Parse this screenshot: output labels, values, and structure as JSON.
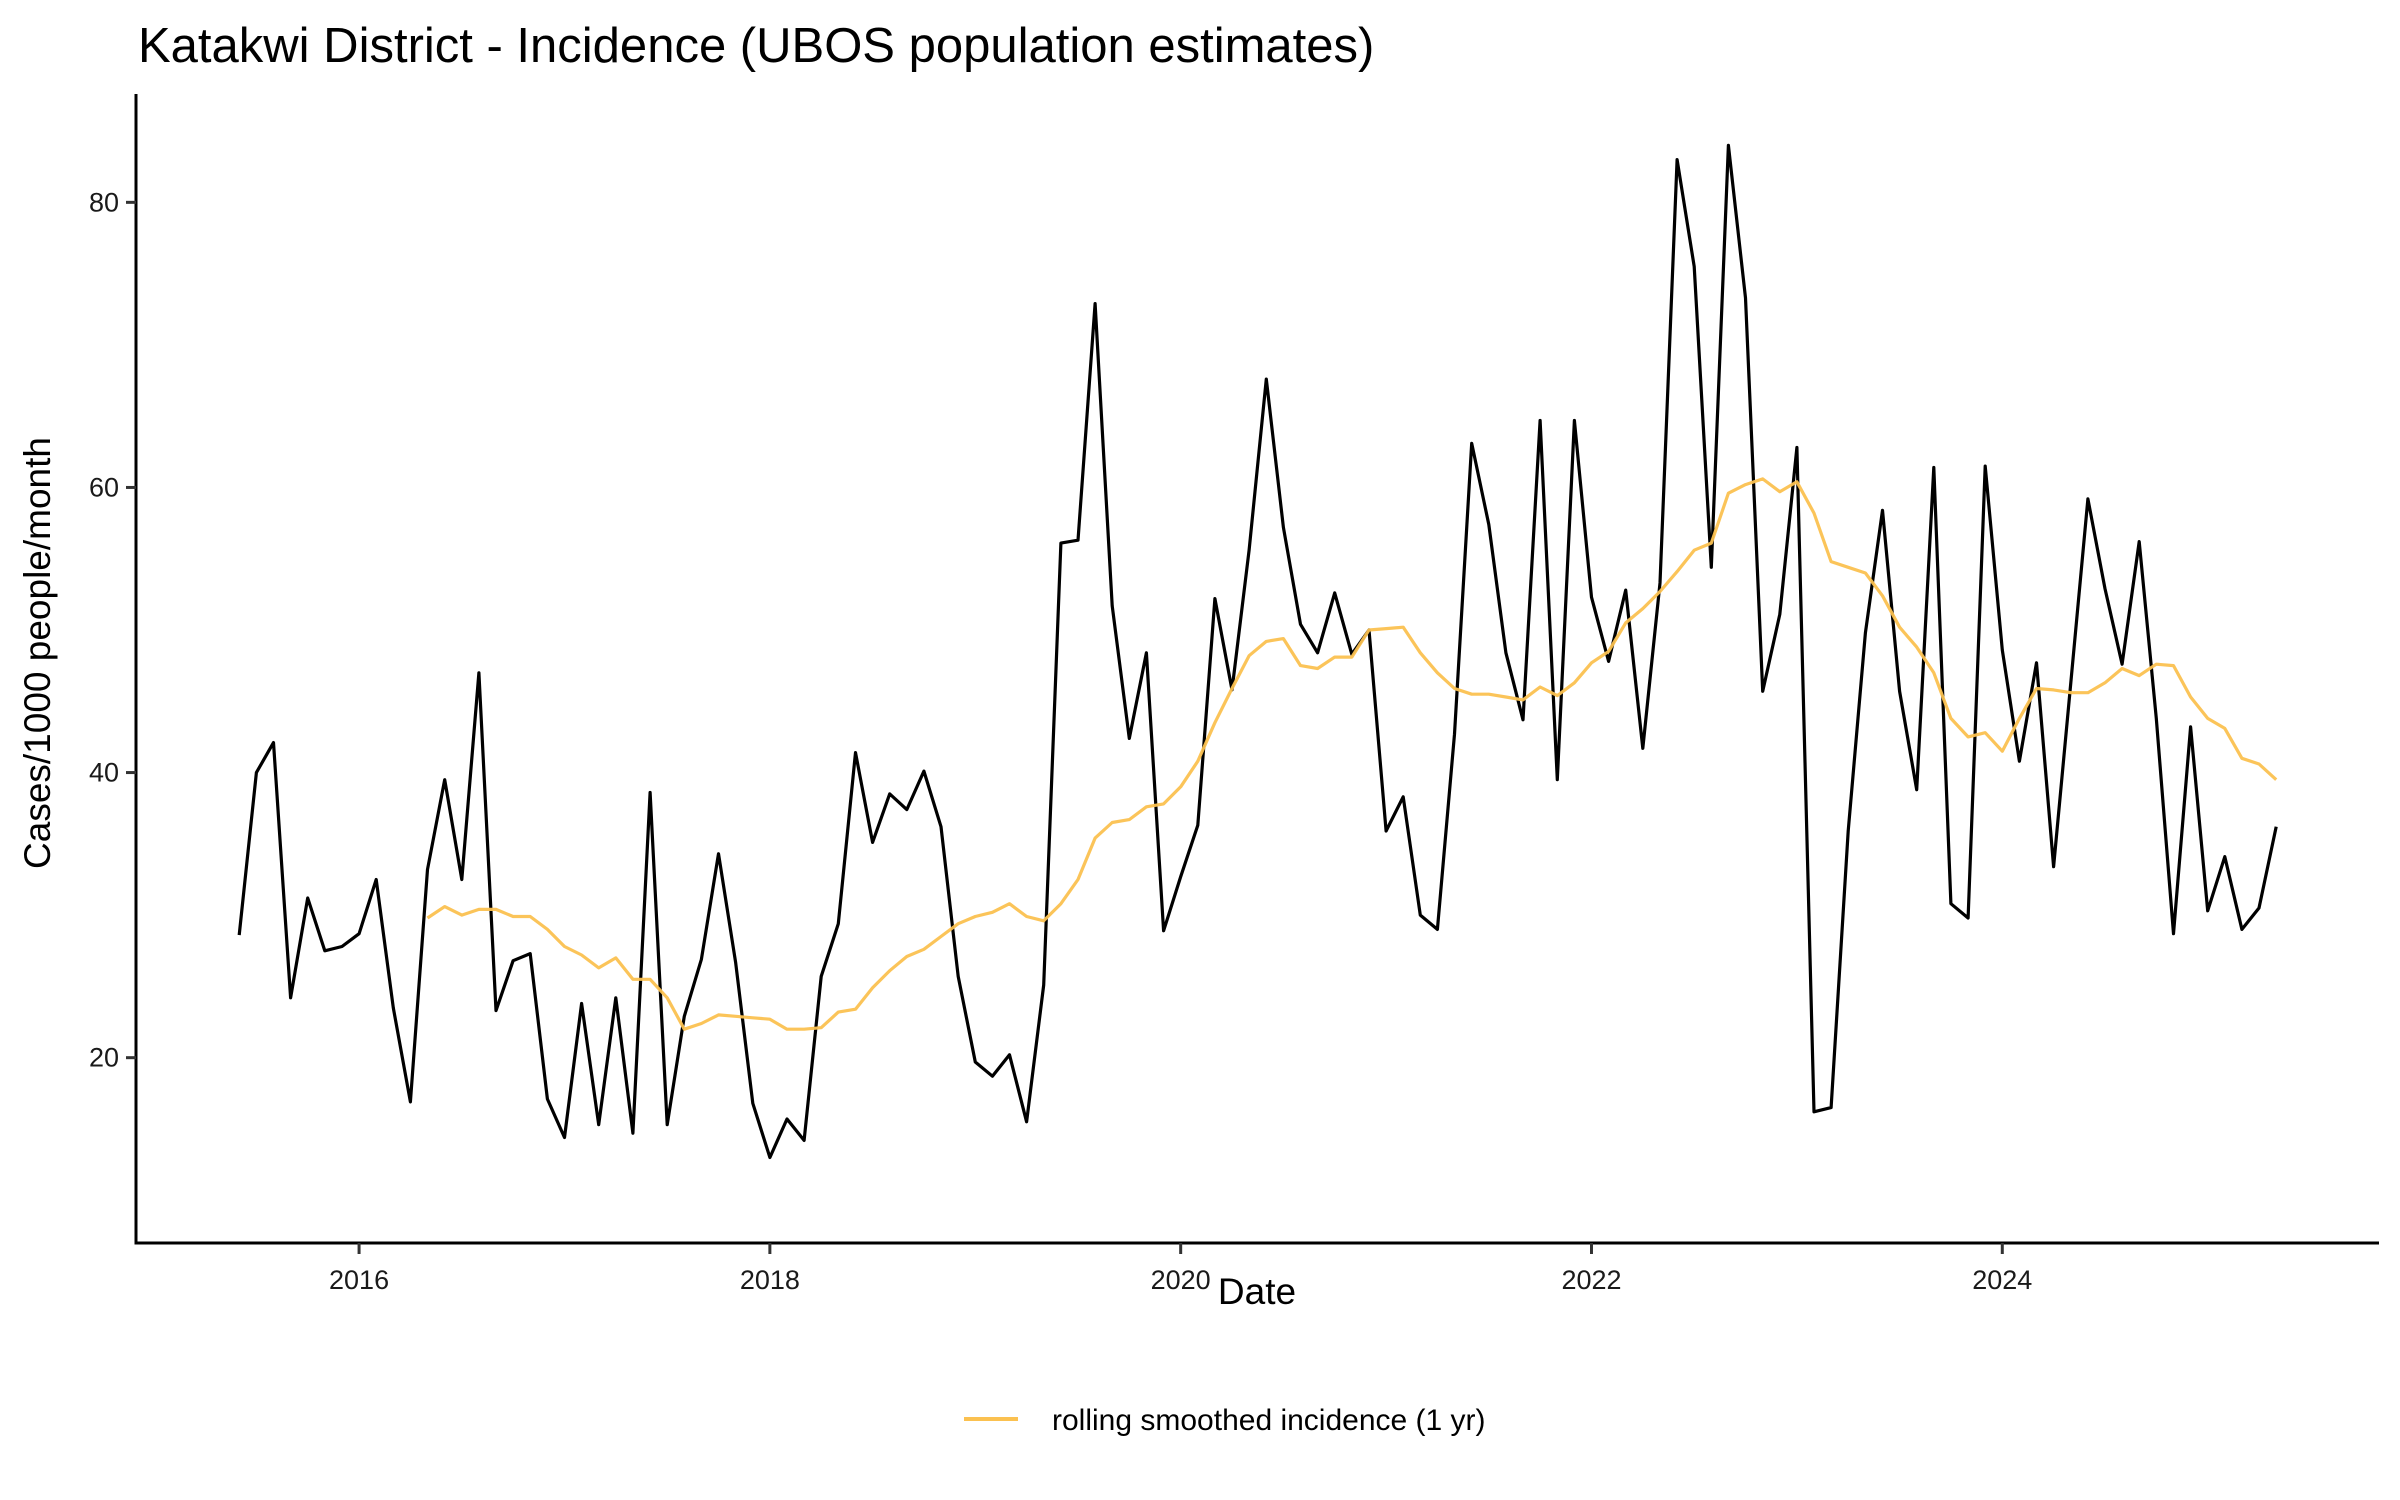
{
  "chart_data": {
    "type": "line",
    "title": "Katakwi District - Incidence (UBOS population estimates)",
    "xlabel": "Date",
    "ylabel": "Cases/1000 people/month",
    "xlim": [
      2014.914,
      2025.834
    ],
    "ylim": [
      7.0,
      87.6
    ],
    "x_ticks": [
      2016,
      2018,
      2020,
      2022,
      2024
    ],
    "x_tick_labels": [
      "2016",
      "2018",
      "2020",
      "2022",
      "2024"
    ],
    "y_ticks": [
      20,
      40,
      60,
      80
    ],
    "y_tick_labels": [
      "20",
      "40",
      "60",
      "80"
    ],
    "grid": false,
    "legend": {
      "position": "bottom",
      "entries": [
        "rolling smoothed incidence (1 yr)"
      ]
    },
    "series": [
      {
        "name": "incidence",
        "show_in_legend": false,
        "color": "#000000",
        "start": "2015-06",
        "frequency": "monthly",
        "values": [
          28.6,
          40.0,
          42.1,
          24.2,
          31.2,
          27.5,
          27.8,
          28.7,
          32.5,
          23.5,
          16.9,
          33.2,
          39.5,
          32.5,
          47.0,
          23.3,
          26.8,
          27.3,
          17.1,
          14.4,
          23.8,
          15.3,
          24.2,
          14.7,
          38.6,
          15.3,
          22.9,
          26.9,
          34.3,
          26.7,
          16.8,
          13.0,
          15.7,
          14.2,
          25.7,
          29.4,
          41.4,
          35.1,
          38.5,
          37.4,
          40.1,
          36.2,
          25.7,
          19.7,
          18.7,
          20.2,
          15.5,
          25.1,
          56.1,
          56.3,
          72.9,
          51.7,
          42.4,
          48.4,
          28.9,
          32.7,
          36.3,
          52.2,
          45.8,
          55.6,
          67.6,
          57.2,
          50.4,
          48.4,
          52.6,
          48.3,
          50.0,
          35.9,
          38.3,
          30.0,
          29.0,
          42.7,
          63.1,
          57.4,
          48.4,
          43.7,
          64.7,
          39.5,
          64.7,
          52.3,
          47.8,
          52.8,
          41.7,
          53.3,
          83.0,
          75.5,
          54.4,
          84.0,
          73.3,
          45.7,
          51.1,
          62.8,
          16.2,
          16.5,
          35.9,
          49.8,
          58.4,
          45.7,
          38.8,
          61.4,
          30.8,
          29.8,
          61.5,
          48.6,
          40.8,
          47.7,
          33.4,
          46.3,
          59.2,
          52.9,
          47.6,
          56.2,
          43.8,
          28.7,
          43.2,
          30.3,
          34.1,
          29.0,
          30.5,
          36.2
        ]
      },
      {
        "name": "rolling smoothed incidence (1 yr)",
        "show_in_legend": true,
        "color": "#FBC150",
        "start": "2016-05",
        "frequency": "monthly",
        "values": [
          29.8,
          30.6,
          30.0,
          30.4,
          30.4,
          29.9,
          29.9,
          29.0,
          27.8,
          27.2,
          26.3,
          27.0,
          25.5,
          25.5,
          24.2,
          22.0,
          22.4,
          23.0,
          22.9,
          22.8,
          22.7,
          22.0,
          22.0,
          22.1,
          23.2,
          23.4,
          24.9,
          26.1,
          27.1,
          27.6,
          28.5,
          29.4,
          29.9,
          30.2,
          30.8,
          29.9,
          29.6,
          30.8,
          32.5,
          35.4,
          36.5,
          36.7,
          37.6,
          37.8,
          39.0,
          40.8,
          43.5,
          45.9,
          48.2,
          49.2,
          49.4,
          47.5,
          47.3,
          48.1,
          48.1,
          50.0,
          50.1,
          50.2,
          48.4,
          47.0,
          45.9,
          45.5,
          45.5,
          45.3,
          45.1,
          46.0,
          45.4,
          46.3,
          47.7,
          48.5,
          50.5,
          51.5,
          52.7,
          54.1,
          55.6,
          56.1,
          59.6,
          60.2,
          60.6,
          59.7,
          60.4,
          58.2,
          54.8,
          54.4,
          54.0,
          52.4,
          50.2,
          48.8,
          47.0,
          43.8,
          42.5,
          42.8,
          41.5,
          43.8,
          45.9,
          45.8,
          45.6,
          45.6,
          46.3,
          47.3,
          46.8,
          47.6,
          47.5,
          45.3,
          43.8,
          43.1,
          41.0,
          40.6,
          39.5
        ]
      }
    ]
  }
}
